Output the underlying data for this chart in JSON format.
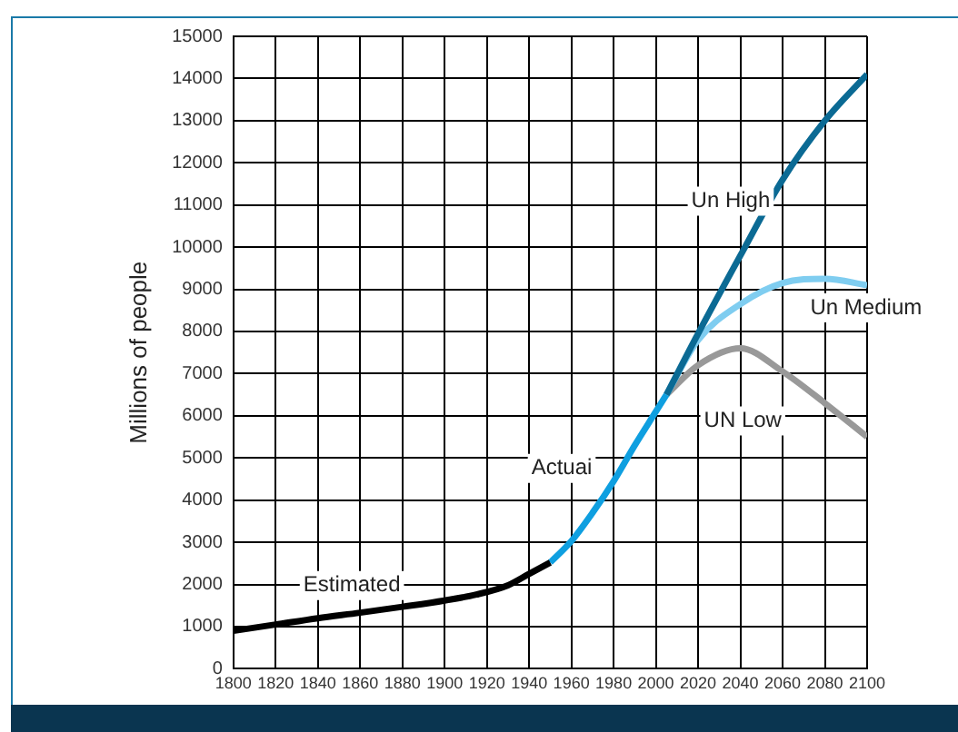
{
  "chart_data": {
    "type": "line",
    "ylabel": "Millions of people",
    "xlim": [
      1800,
      2100
    ],
    "xticks": [
      1800,
      1820,
      1840,
      1860,
      1880,
      1900,
      1920,
      1940,
      1960,
      1980,
      2000,
      2020,
      2040,
      2060,
      2080,
      2100
    ],
    "ylim": [
      0,
      15000
    ],
    "yticks": [
      0,
      1000,
      2000,
      3000,
      4000,
      5000,
      6000,
      7000,
      8000,
      9000,
      10000,
      11000,
      12000,
      13000,
      14000,
      15000
    ],
    "grid": true,
    "legend": false,
    "marker": "none",
    "line_style": "solid",
    "series": [
      {
        "name": "Estimated",
        "color": "#000000",
        "x": [
          1800,
          1820,
          1840,
          1860,
          1880,
          1900,
          1915,
          1930,
          1940,
          1950
        ],
        "values": [
          900,
          1050,
          1200,
          1330,
          1470,
          1620,
          1760,
          1980,
          2250,
          2520
        ]
      },
      {
        "name": "Actuai",
        "color": "#0f9fe0",
        "x": [
          1950,
          1960,
          1970,
          1980,
          1990,
          2000,
          2005
        ],
        "values": [
          2520,
          3030,
          3700,
          4450,
          5300,
          6100,
          6500
        ]
      },
      {
        "name": "Un High",
        "color": "#0b6a94",
        "x": [
          2005,
          2020,
          2040,
          2060,
          2080,
          2100
        ],
        "values": [
          6500,
          7950,
          9800,
          11600,
          13000,
          14100
        ]
      },
      {
        "name": "Un Medium",
        "color": "#7fcdf0",
        "x": [
          2005,
          2020,
          2040,
          2060,
          2080,
          2100
        ],
        "values": [
          6500,
          7800,
          8650,
          9150,
          9250,
          9100
        ]
      },
      {
        "name": "UN Low",
        "color": "#999999",
        "x": [
          2005,
          2020,
          2040,
          2060,
          2080,
          2100
        ],
        "values": [
          6500,
          7200,
          7600,
          7050,
          6300,
          5500
        ]
      }
    ]
  }
}
